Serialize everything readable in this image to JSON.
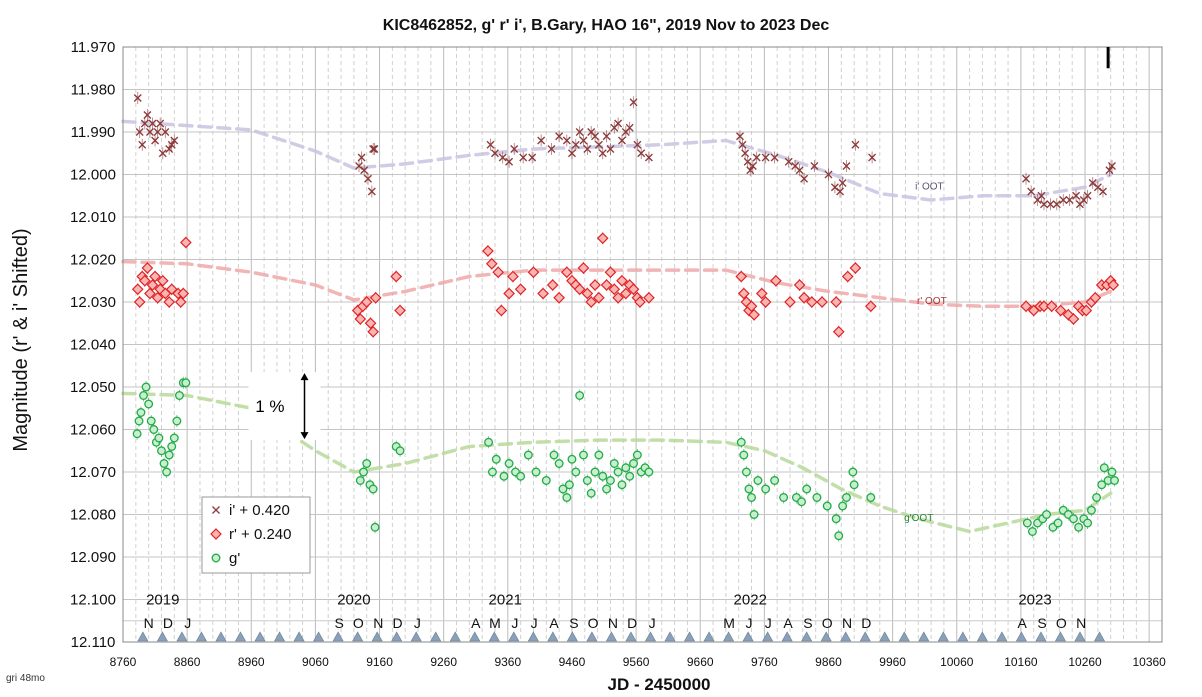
{
  "chart_data": {
    "type": "scatter",
    "title": "KIC8462852, g' r' i', B.Gary, HAO 16\", 2019 Nov to 2023 Dec",
    "xlabel": "JD - 2450000",
    "ylabel": "Magnitude  (r' & i' Shifted)",
    "xlim": [
      8760,
      10380
    ],
    "ylim": [
      12.11,
      11.97
    ],
    "y_inverted": true,
    "x_ticks": [
      "8760",
      "8860",
      "8960",
      "9060",
      "9160",
      "9260",
      "9360",
      "9460",
      "9560",
      "9660",
      "9760",
      "9860",
      "9960",
      "10060",
      "10160",
      "10260",
      "10360"
    ],
    "y_ticks": [
      "11.970",
      "11.980",
      "11.990",
      "12.000",
      "12.010",
      "12.020",
      "12.030",
      "12.040",
      "12.050",
      "12.060",
      "12.070",
      "12.080",
      "12.090",
      "12.100",
      "12.110"
    ],
    "grid": true,
    "legend_position": "bottom-left",
    "legend": [
      {
        "label": "i' + 0.420",
        "marker": "x",
        "color": "#8B3A3A"
      },
      {
        "label": "r' + 0.240",
        "marker": "diamond",
        "color": "#E02020"
      },
      {
        "label": "g'",
        "marker": "circle",
        "color": "#22AA44"
      }
    ],
    "series": [
      {
        "name": "i' + 0.420",
        "color": "#8B3A3A",
        "marker": "x",
        "x": [
          8783,
          8786,
          8790,
          8794,
          8798,
          8802,
          8806,
          8810,
          8814,
          8818,
          8822,
          8826,
          8832,
          8836,
          8840,
          9128,
          9132,
          9136,
          9142,
          9148,
          9150,
          9152,
          9333,
          9340,
          9352,
          9362,
          9370,
          9384,
          9398,
          9412,
          9428,
          9440,
          9452,
          9460,
          9466,
          9472,
          9478,
          9484,
          9490,
          9496,
          9502,
          9508,
          9514,
          9520,
          9526,
          9532,
          9538,
          9544,
          9550,
          9556,
          9562,
          9568,
          9580,
          9722,
          9726,
          9730,
          9734,
          9738,
          9742,
          9748,
          9762,
          9776,
          9798,
          9808,
          9815,
          9822,
          9838,
          9860,
          9870,
          9878,
          9882,
          9888,
          9902,
          9928,
          10168,
          10176,
          10186,
          10192,
          10196,
          10206,
          10216,
          10226,
          10236,
          10246,
          10252,
          10258,
          10264,
          10272,
          10280,
          10288,
          10298,
          10302
        ],
        "y": [
          11.982,
          11.99,
          11.993,
          11.988,
          11.986,
          11.99,
          11.988,
          11.992,
          11.99,
          11.988,
          11.995,
          11.99,
          11.994,
          11.993,
          11.992,
          11.998,
          11.996,
          11.999,
          12.001,
          12.004,
          11.994,
          11.994,
          11.993,
          11.995,
          11.996,
          11.997,
          11.994,
          11.996,
          11.996,
          11.992,
          11.994,
          11.991,
          11.992,
          11.995,
          11.993,
          11.99,
          11.992,
          11.994,
          11.99,
          11.991,
          11.993,
          11.995,
          11.991,
          11.994,
          11.989,
          11.988,
          11.992,
          11.99,
          11.989,
          11.983,
          11.993,
          11.995,
          11.996,
          11.991,
          11.993,
          11.995,
          11.997,
          11.999,
          11.998,
          11.996,
          11.996,
          11.996,
          11.997,
          11.998,
          11.999,
          12.001,
          11.998,
          12.0,
          12.003,
          12.004,
          12.002,
          11.998,
          11.993,
          11.996,
          12.001,
          12.004,
          12.006,
          12.005,
          12.007,
          12.007,
          12.007,
          12.006,
          12.006,
          12.005,
          12.007,
          12.006,
          12.005,
          12.002,
          12.003,
          12.004,
          11.999,
          11.998
        ]
      },
      {
        "name": "r' + 0.240",
        "color": "#E02020",
        "marker": "diamond",
        "x": [
          8783,
          8786,
          8790,
          8794,
          8798,
          8802,
          8806,
          8810,
          8814,
          8818,
          8822,
          8826,
          8832,
          8836,
          8846,
          8850,
          8854,
          8858,
          9126,
          9130,
          9134,
          9140,
          9146,
          9150,
          9154,
          9186,
          9192,
          9329,
          9335,
          9345,
          9350,
          9362,
          9368,
          9380,
          9400,
          9415,
          9430,
          9440,
          9452,
          9460,
          9466,
          9472,
          9478,
          9484,
          9490,
          9496,
          9502,
          9508,
          9514,
          9520,
          9526,
          9532,
          9538,
          9544,
          9550,
          9556,
          9562,
          9566,
          9580,
          9724,
          9728,
          9732,
          9736,
          9740,
          9744,
          9756,
          9762,
          9778,
          9800,
          9815,
          9822,
          9834,
          9850,
          9872,
          9876,
          9890,
          9902,
          9926,
          10168,
          10180,
          10190,
          10196,
          10208,
          10222,
          10234,
          10242,
          10250,
          10256,
          10262,
          10270,
          10276,
          10286,
          10294,
          10300,
          10304
        ],
        "y": [
          12.027,
          12.03,
          12.024,
          12.025,
          12.022,
          12.028,
          12.026,
          12.024,
          12.029,
          12.027,
          12.025,
          12.028,
          12.03,
          12.027,
          12.028,
          12.03,
          12.028,
          12.016,
          12.032,
          12.034,
          12.031,
          12.03,
          12.035,
          12.037,
          12.029,
          12.024,
          12.032,
          12.018,
          12.021,
          12.023,
          12.032,
          12.028,
          12.024,
          12.027,
          12.023,
          12.028,
          12.026,
          12.029,
          12.023,
          12.025,
          12.026,
          12.027,
          12.022,
          12.028,
          12.03,
          12.026,
          12.029,
          12.015,
          12.026,
          12.023,
          12.027,
          12.029,
          12.025,
          12.028,
          12.026,
          12.027,
          12.029,
          12.03,
          12.029,
          12.024,
          12.028,
          12.03,
          12.032,
          12.031,
          12.033,
          12.028,
          12.03,
          12.025,
          12.03,
          12.026,
          12.029,
          12.03,
          12.03,
          12.03,
          12.037,
          12.024,
          12.022,
          12.031,
          12.031,
          12.032,
          12.031,
          12.031,
          12.031,
          12.032,
          12.033,
          12.034,
          12.031,
          12.032,
          12.032,
          12.03,
          12.029,
          12.026,
          12.026,
          12.025,
          12.026
        ]
      },
      {
        "name": "g'",
        "color": "#22AA44",
        "marker": "circle",
        "x": [
          8782,
          8785,
          8788,
          8792,
          8796,
          8800,
          8804,
          8808,
          8812,
          8816,
          8820,
          8824,
          8828,
          8832,
          8836,
          8840,
          8844,
          8848,
          8854,
          8858,
          9130,
          9135,
          9140,
          9145,
          9150,
          9153,
          9186,
          9192,
          9330,
          9336,
          9342,
          9354,
          9362,
          9372,
          9380,
          9392,
          9404,
          9420,
          9432,
          9440,
          9446,
          9452,
          9456,
          9460,
          9466,
          9472,
          9478,
          9484,
          9490,
          9496,
          9502,
          9508,
          9514,
          9520,
          9526,
          9532,
          9538,
          9544,
          9550,
          9556,
          9562,
          9568,
          9574,
          9580,
          9724,
          9728,
          9732,
          9736,
          9740,
          9744,
          9750,
          9762,
          9776,
          9790,
          9810,
          9818,
          9826,
          9842,
          9858,
          9872,
          9876,
          9882,
          9888,
          9898,
          9900,
          9926,
          10170,
          10178,
          10186,
          10194,
          10200,
          10210,
          10218,
          10226,
          10234,
          10242,
          10250,
          10258,
          10264,
          10270,
          10278,
          10286,
          10290,
          10296,
          10302,
          10306
        ],
        "y": [
          12.061,
          12.058,
          12.056,
          12.052,
          12.05,
          12.054,
          12.058,
          12.06,
          12.063,
          12.062,
          12.065,
          12.068,
          12.07,
          12.066,
          12.064,
          12.062,
          12.058,
          12.052,
          12.049,
          12.049,
          12.072,
          12.07,
          12.068,
          12.073,
          12.074,
          12.083,
          12.064,
          12.065,
          12.063,
          12.07,
          12.067,
          12.071,
          12.068,
          12.07,
          12.071,
          12.066,
          12.07,
          12.072,
          12.066,
          12.068,
          12.074,
          12.076,
          12.073,
          12.067,
          12.07,
          12.052,
          12.066,
          12.072,
          12.075,
          12.07,
          12.066,
          12.071,
          12.074,
          12.072,
          12.068,
          12.07,
          12.073,
          12.069,
          12.071,
          12.068,
          12.066,
          12.07,
          12.069,
          12.07,
          12.063,
          12.066,
          12.07,
          12.074,
          12.076,
          12.08,
          12.072,
          12.074,
          12.072,
          12.076,
          12.076,
          12.077,
          12.074,
          12.076,
          12.078,
          12.081,
          12.085,
          12.078,
          12.076,
          12.07,
          12.073,
          12.076,
          12.082,
          12.084,
          12.082,
          12.081,
          12.08,
          12.083,
          12.082,
          12.079,
          12.08,
          12.081,
          12.083,
          12.081,
          12.082,
          12.079,
          12.076,
          12.073,
          12.069,
          12.072,
          12.07,
          12.072
        ]
      },
      {
        "name": "i' OOT",
        "color": "#C9C3E0",
        "style": "dashed",
        "x": [
          8760,
          8860,
          8960,
          9060,
          9120,
          9200,
          9300,
          9400,
          9500,
          9600,
          9700,
          9780,
          9860,
          9940,
          10020,
          10100,
          10180,
          10260,
          10300
        ],
        "y": [
          11.9875,
          11.9885,
          11.9895,
          11.9945,
          11.9985,
          11.9975,
          11.9955,
          11.994,
          11.9935,
          11.993,
          11.992,
          11.9955,
          11.9995,
          12.0045,
          12.006,
          12.005,
          12.005,
          12.003,
          12.0
        ]
      },
      {
        "name": "r' OOT",
        "color": "#F0A8A8",
        "style": "dashed",
        "x": [
          8760,
          8860,
          8960,
          9060,
          9120,
          9200,
          9300,
          9400,
          9500,
          9600,
          9700,
          9780,
          9860,
          9940,
          10020,
          10100,
          10180,
          10260,
          10300
        ],
        "y": [
          12.0205,
          12.021,
          12.023,
          12.026,
          12.0295,
          12.0275,
          12.024,
          12.0225,
          12.0225,
          12.0225,
          12.0225,
          12.0255,
          12.0275,
          12.029,
          12.0305,
          12.031,
          12.031,
          12.03,
          12.0275
        ]
      },
      {
        "name": "g'OOT",
        "color": "#B7D99A",
        "style": "dashed",
        "x": [
          8760,
          8860,
          8960,
          9060,
          9120,
          9200,
          9300,
          9400,
          9500,
          9600,
          9700,
          9760,
          9820,
          9880,
          9940,
          10000,
          10080,
          10140,
          10200,
          10260,
          10300
        ],
        "y": [
          12.0515,
          12.052,
          12.055,
          12.065,
          12.07,
          12.068,
          12.064,
          12.063,
          12.0625,
          12.0625,
          12.063,
          12.065,
          12.069,
          12.074,
          12.078,
          12.081,
          12.084,
          12.082,
          12.08,
          12.079,
          12.075
        ]
      }
    ],
    "series_labels": [
      {
        "text": "i' OOT",
        "x": 9995,
        "y": 12.0035,
        "color": "#555577"
      },
      {
        "text": "r' OOT",
        "x": 9998,
        "y": 12.0305,
        "color": "#AA3333"
      },
      {
        "text": "g'OOT",
        "x": 9978,
        "y": 12.0815,
        "color": "#228833"
      }
    ],
    "annotation": {
      "text": "1 %",
      "x_bar": 9043,
      "y_from": 12.0465,
      "y_to": 12.0625
    },
    "years": [
      {
        "label": "2019",
        "x": 8822
      },
      {
        "label": "2020",
        "x": 9120
      },
      {
        "label": "2021",
        "x": 9356
      },
      {
        "label": "2022",
        "x": 9738
      },
      {
        "label": "2023",
        "x": 10182
      }
    ],
    "months": [
      {
        "label": "N",
        "x": 8800
      },
      {
        "label": "D",
        "x": 8830
      },
      {
        "label": "J",
        "x": 8861
      },
      {
        "label": "S",
        "x": 9097
      },
      {
        "label": "O",
        "x": 9127
      },
      {
        "label": "N",
        "x": 9158
      },
      {
        "label": "D",
        "x": 9188
      },
      {
        "label": "J",
        "x": 9219
      },
      {
        "label": "A",
        "x": 9310
      },
      {
        "label": "M",
        "x": 9340
      },
      {
        "label": "J",
        "x": 9371
      },
      {
        "label": "J",
        "x": 9401
      },
      {
        "label": "A",
        "x": 9432
      },
      {
        "label": "S",
        "x": 9463
      },
      {
        "label": "O",
        "x": 9493
      },
      {
        "label": "N",
        "x": 9524
      },
      {
        "label": "D",
        "x": 9554
      },
      {
        "label": "J",
        "x": 9585
      },
      {
        "label": "M",
        "x": 9705
      },
      {
        "label": "J",
        "x": 9736
      },
      {
        "label": "J",
        "x": 9766
      },
      {
        "label": "A",
        "x": 9797
      },
      {
        "label": "S",
        "x": 9828
      },
      {
        "label": "O",
        "x": 9858
      },
      {
        "label": "N",
        "x": 9889
      },
      {
        "label": "D",
        "x": 9919
      },
      {
        "label": "A",
        "x": 10162
      },
      {
        "label": "S",
        "x": 10193
      },
      {
        "label": "O",
        "x": 10223
      },
      {
        "label": "N",
        "x": 10254
      }
    ]
  },
  "footnote": "gri 48mo",
  "mark_top_right": {
    "x": 10296,
    "y_from": 11.97,
    "y_to": 11.975
  }
}
